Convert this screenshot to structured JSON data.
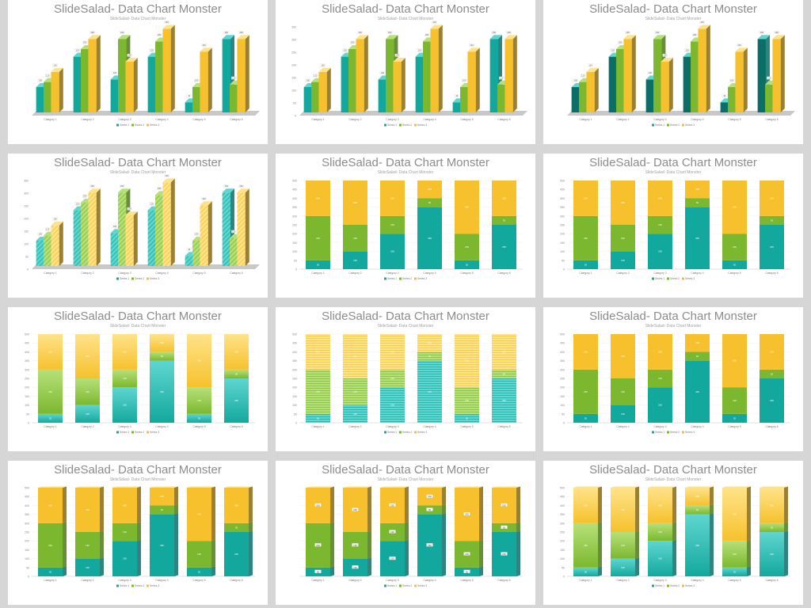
{
  "slide_title": "SlideSalad- Data Chart Monster",
  "slide_subtitle": "SlideSalad- Data Chart Monster",
  "colors": {
    "series1": "#13a89e",
    "series2": "#7cb82f",
    "series3": "#f6c12c"
  },
  "chart_data": [
    {
      "type": "bar",
      "style": "3d-clustered",
      "categories": [
        "Category 1",
        "Category 2",
        "Category 3",
        "Category 4",
        "Category 5",
        "Category 6"
      ],
      "series": [
        {
          "name": "Series 1",
          "values": [
            100,
            220,
            130,
            220,
            40,
            290
          ]
        },
        {
          "name": "Series 2",
          "values": [
            120,
            250,
            290,
            280,
            100,
            110
          ]
        },
        {
          "name": "Series 3",
          "values": [
            160,
            290,
            200,
            330,
            240,
            290
          ]
        }
      ],
      "ylim": [
        0,
        350
      ]
    },
    {
      "type": "bar",
      "style": "3d-clustered-labels",
      "categories": [
        "Category 1",
        "Category 2",
        "Category 3",
        "Category 4",
        "Category 5",
        "Category 6"
      ],
      "series": [
        {
          "name": "Series 1",
          "values": [
            100,
            220,
            130,
            220,
            40,
            290
          ]
        },
        {
          "name": "Series 2",
          "values": [
            120,
            250,
            290,
            280,
            100,
            110
          ]
        },
        {
          "name": "Series 3",
          "values": [
            160,
            290,
            200,
            330,
            240,
            290
          ]
        }
      ],
      "ylim": [
        0,
        350
      ]
    },
    {
      "type": "bar",
      "style": "3d-clustered-dark",
      "categories": [
        "Category 1",
        "Category 2",
        "Category 3",
        "Category 4",
        "Category 5",
        "Category 6"
      ],
      "series": [
        {
          "name": "Series 1",
          "values": [
            100,
            220,
            130,
            220,
            40,
            290
          ]
        },
        {
          "name": "Series 2",
          "values": [
            120,
            250,
            290,
            280,
            100,
            110
          ]
        },
        {
          "name": "Series 3",
          "values": [
            160,
            290,
            200,
            330,
            240,
            290
          ]
        }
      ],
      "ylim": [
        0,
        350
      ]
    },
    {
      "type": "bar",
      "style": "3d-clustered-hatched",
      "categories": [
        "Category 1",
        "Category 2",
        "Category 3",
        "Category 4",
        "Category 5",
        "Category 6"
      ],
      "series": [
        {
          "name": "Series 1",
          "values": [
            100,
            220,
            130,
            220,
            40,
            290
          ]
        },
        {
          "name": "Series 2",
          "values": [
            120,
            250,
            290,
            280,
            100,
            110
          ]
        },
        {
          "name": "Series 3",
          "values": [
            160,
            290,
            200,
            330,
            240,
            290
          ]
        }
      ],
      "ylim": [
        0,
        350
      ]
    },
    {
      "type": "bar",
      "style": "stacked-100",
      "categories": [
        "Category 1",
        "Category 2",
        "Category 3",
        "Category 4",
        "Category 5",
        "Category 6"
      ],
      "series": [
        {
          "name": "Series 1",
          "values": [
            10,
            20,
            40,
            70,
            10,
            50
          ]
        },
        {
          "name": "Series 2",
          "values": [
            50,
            30,
            20,
            10,
            30,
            10
          ]
        },
        {
          "name": "Series 3",
          "values": [
            40,
            50,
            40,
            20,
            60,
            40
          ]
        }
      ],
      "ylim": [
        0,
        100
      ]
    },
    {
      "type": "bar",
      "style": "stacked-100",
      "categories": [
        "Category 1",
        "Category 2",
        "Category 3",
        "Category 4",
        "Category 5",
        "Category 6"
      ],
      "series": [
        {
          "name": "Series 1",
          "values": [
            10,
            20,
            40,
            70,
            10,
            50
          ]
        },
        {
          "name": "Series 2",
          "values": [
            50,
            30,
            20,
            10,
            30,
            10
          ]
        },
        {
          "name": "Series 3",
          "values": [
            40,
            50,
            40,
            20,
            60,
            40
          ]
        }
      ],
      "ylim": [
        0,
        100
      ]
    },
    {
      "type": "bar",
      "style": "stacked-100-gradient",
      "categories": [
        "Category 1",
        "Category 2",
        "Category 3",
        "Category 4",
        "Category 5",
        "Category 6"
      ],
      "series": [
        {
          "name": "Series 1",
          "values": [
            10,
            20,
            40,
            70,
            10,
            50
          ]
        },
        {
          "name": "Series 2",
          "values": [
            50,
            30,
            20,
            10,
            30,
            10
          ]
        },
        {
          "name": "Series 3",
          "values": [
            40,
            50,
            40,
            20,
            60,
            40
          ]
        }
      ],
      "ylim": [
        0,
        100
      ]
    },
    {
      "type": "bar",
      "style": "stacked-100-striped",
      "categories": [
        "Category 1",
        "Category 2",
        "Category 3",
        "Category 4",
        "Category 5",
        "Category 6"
      ],
      "series": [
        {
          "name": "Series 1",
          "values": [
            10,
            20,
            40,
            70,
            10,
            50
          ]
        },
        {
          "name": "Series 2",
          "values": [
            50,
            30,
            20,
            10,
            30,
            10
          ]
        },
        {
          "name": "Series 3",
          "values": [
            40,
            50,
            40,
            20,
            60,
            40
          ]
        }
      ],
      "ylim": [
        0,
        100
      ]
    },
    {
      "type": "bar",
      "style": "stacked-100-flat",
      "categories": [
        "Category 1",
        "Category 2",
        "Category 3",
        "Category 4",
        "Category 5",
        "Category 6"
      ],
      "series": [
        {
          "name": "Series 1",
          "values": [
            10,
            20,
            40,
            70,
            10,
            50
          ]
        },
        {
          "name": "Series 2",
          "values": [
            50,
            30,
            20,
            10,
            30,
            10
          ]
        },
        {
          "name": "Series 3",
          "values": [
            40,
            50,
            40,
            20,
            60,
            40
          ]
        }
      ],
      "ylim": [
        0,
        100
      ]
    },
    {
      "type": "bar",
      "style": "stacked-100-3d",
      "categories": [
        "Category 1",
        "Category 2",
        "Category 3",
        "Category 4",
        "Category 5",
        "Category 6"
      ],
      "series": [
        {
          "name": "Series 1",
          "values": [
            10,
            20,
            40,
            70,
            10,
            50
          ]
        },
        {
          "name": "Series 2",
          "values": [
            50,
            30,
            20,
            10,
            30,
            10
          ]
        },
        {
          "name": "Series 3",
          "values": [
            40,
            50,
            40,
            20,
            60,
            40
          ]
        }
      ],
      "ylim": [
        0,
        100
      ]
    },
    {
      "type": "bar",
      "style": "stacked-100-3d-labels",
      "categories": [
        "Category 1",
        "Category 2",
        "Category 3",
        "Category 4",
        "Category 5",
        "Category 6"
      ],
      "series": [
        {
          "name": "Series 1",
          "values": [
            10,
            20,
            40,
            70,
            10,
            50
          ]
        },
        {
          "name": "Series 2",
          "values": [
            50,
            30,
            20,
            10,
            30,
            10
          ]
        },
        {
          "name": "Series 3",
          "values": [
            40,
            50,
            40,
            20,
            60,
            40
          ]
        }
      ],
      "ylim": [
        0,
        100
      ]
    },
    {
      "type": "bar",
      "style": "stacked-100-3d-gradient",
      "categories": [
        "Category 1",
        "Category 2",
        "Category 3",
        "Category 4",
        "Category 5",
        "Category 6"
      ],
      "series": [
        {
          "name": "Series 1",
          "values": [
            10,
            20,
            40,
            70,
            10,
            50
          ]
        },
        {
          "name": "Series 2",
          "values": [
            50,
            30,
            20,
            10,
            30,
            10
          ]
        },
        {
          "name": "Series 3",
          "values": [
            40,
            50,
            40,
            20,
            60,
            40
          ]
        }
      ],
      "ylim": [
        0,
        100
      ]
    }
  ]
}
